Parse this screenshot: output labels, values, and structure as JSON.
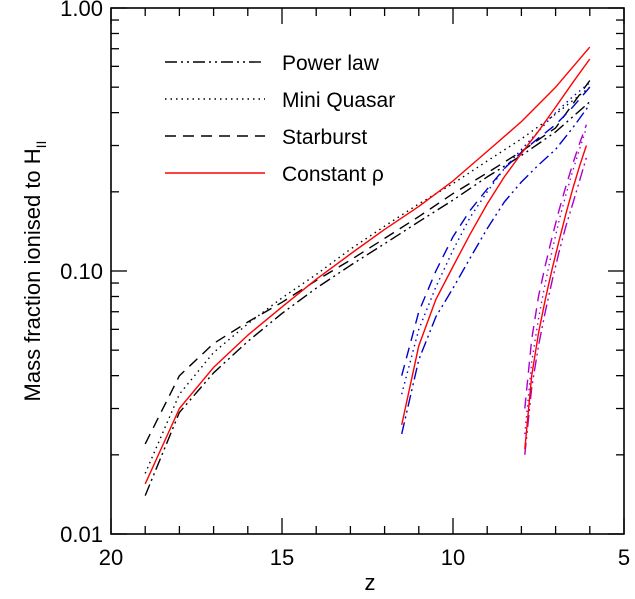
{
  "chart_data": {
    "type": "line",
    "title": "",
    "xlabel": "z",
    "ylabel_main": "Mass fraction ionised to H",
    "ylabel_sub": "II",
    "xlim": [
      20,
      5
    ],
    "ylim": [
      0.01,
      1.0
    ],
    "yscale": "log",
    "x_ticks": [
      20,
      15,
      10,
      5
    ],
    "x_tick_labels": [
      "20",
      "15",
      "10",
      "5"
    ],
    "y_ticks": [
      0.01,
      0.1,
      1.0
    ],
    "y_tick_labels": [
      "0.01",
      "0.10",
      "1.00"
    ],
    "legend_position": "top-left",
    "legend": [
      {
        "label": "Power law",
        "style": "dashdotdot",
        "color": "#000000"
      },
      {
        "label": "Mini Quasar",
        "style": "dotted",
        "color": "#000000"
      },
      {
        "label": "Starburst",
        "style": "dashed",
        "color": "#000000"
      },
      {
        "label": "Constant ρ",
        "style": "solid",
        "color": "#ff0000"
      }
    ],
    "series": [
      {
        "group": "z19",
        "style": "dashdotdot",
        "color": "#000000",
        "x": [
          19,
          18,
          17,
          16,
          15,
          14,
          13,
          12,
          11,
          10,
          9,
          8,
          7,
          6
        ],
        "y": [
          0.014,
          0.029,
          0.041,
          0.054,
          0.069,
          0.086,
          0.105,
          0.127,
          0.154,
          0.186,
          0.228,
          0.275,
          0.338,
          0.44
        ]
      },
      {
        "group": "z19",
        "style": "dotted",
        "color": "#000000",
        "x": [
          19,
          18,
          17,
          16,
          15,
          14,
          13,
          12,
          11,
          10,
          9,
          8,
          7,
          6
        ],
        "y": [
          0.017,
          0.034,
          0.049,
          0.063,
          0.079,
          0.097,
          0.121,
          0.148,
          0.18,
          0.215,
          0.262,
          0.318,
          0.395,
          0.5
        ]
      },
      {
        "group": "z19",
        "style": "dashed",
        "color": "#000000",
        "x": [
          19,
          18,
          17,
          16,
          15,
          14,
          13,
          12,
          11,
          10,
          9,
          8,
          7,
          6
        ],
        "y": [
          0.022,
          0.04,
          0.053,
          0.064,
          0.076,
          0.092,
          0.11,
          0.133,
          0.161,
          0.197,
          0.236,
          0.285,
          0.35,
          0.53
        ]
      },
      {
        "group": "z19",
        "style": "solid",
        "color": "#ff0000",
        "x": [
          19,
          18,
          17,
          16,
          15,
          14,
          13,
          12,
          11,
          10,
          9,
          8,
          7,
          6
        ],
        "y": [
          0.0155,
          0.03,
          0.043,
          0.057,
          0.073,
          0.093,
          0.116,
          0.144,
          0.176,
          0.22,
          0.285,
          0.37,
          0.5,
          0.71
        ]
      },
      {
        "group": "z11.5",
        "style": "dashdotdot",
        "color": "#0000cc",
        "x": [
          11.5,
          11,
          10.5,
          10,
          9.5,
          9,
          8.5,
          8,
          7.5,
          7,
          6.5,
          6
        ],
        "y": [
          0.024,
          0.046,
          0.067,
          0.086,
          0.112,
          0.145,
          0.183,
          0.218,
          0.253,
          0.29,
          0.35,
          0.43
        ]
      },
      {
        "group": "z11.5",
        "style": "dotted",
        "color": "#0000cc",
        "x": [
          11.5,
          11,
          10.5,
          10,
          9.5,
          9,
          8.5,
          8,
          7.5,
          7,
          6.5,
          6
        ],
        "y": [
          0.034,
          0.06,
          0.087,
          0.12,
          0.16,
          0.2,
          0.245,
          0.29,
          0.34,
          0.4,
          0.46,
          0.52
        ]
      },
      {
        "group": "z11.5",
        "style": "dashed",
        "color": "#0000cc",
        "x": [
          11.5,
          11,
          10.5,
          10,
          9.5,
          9,
          8.5,
          8,
          7.5,
          7,
          6.5,
          6
        ],
        "y": [
          0.04,
          0.07,
          0.1,
          0.135,
          0.17,
          0.205,
          0.245,
          0.283,
          0.32,
          0.36,
          0.42,
          0.5
        ]
      },
      {
        "group": "z11.5",
        "style": "solid",
        "color": "#ff0000",
        "x": [
          11.5,
          11,
          10.5,
          10,
          9.5,
          9,
          8.5,
          8,
          7.5,
          7,
          6.5,
          6
        ],
        "y": [
          0.026,
          0.052,
          0.078,
          0.104,
          0.138,
          0.18,
          0.228,
          0.28,
          0.34,
          0.42,
          0.52,
          0.64
        ]
      },
      {
        "group": "z7.9",
        "style": "dashdotdot",
        "color": "#aa00cc",
        "x": [
          7.9,
          7.7,
          7.5,
          7.3,
          7.1,
          6.9,
          6.7,
          6.5,
          6.3,
          6.1
        ],
        "y": [
          0.02,
          0.036,
          0.052,
          0.07,
          0.092,
          0.118,
          0.148,
          0.18,
          0.22,
          0.27
        ]
      },
      {
        "group": "z7.9",
        "style": "dotted",
        "color": "#aa00cc",
        "x": [
          7.9,
          7.7,
          7.5,
          7.3,
          7.1,
          6.9,
          6.7,
          6.5,
          6.3,
          6.1
        ],
        "y": [
          0.024,
          0.045,
          0.066,
          0.09,
          0.12,
          0.155,
          0.195,
          0.24,
          0.29,
          0.35
        ]
      },
      {
        "group": "z7.9",
        "style": "dashed",
        "color": "#aa00cc",
        "x": [
          7.9,
          7.7,
          7.5,
          7.3,
          7.1,
          6.9,
          6.7,
          6.5,
          6.3,
          6.1
        ],
        "y": [
          0.03,
          0.055,
          0.08,
          0.105,
          0.135,
          0.17,
          0.21,
          0.255,
          0.305,
          0.36
        ]
      },
      {
        "group": "z7.9",
        "style": "solid",
        "color": "#ff0000",
        "x": [
          7.9,
          7.7,
          7.5,
          7.3,
          7.1,
          6.9,
          6.7,
          6.5,
          6.3,
          6.1
        ],
        "y": [
          0.021,
          0.04,
          0.058,
          0.078,
          0.102,
          0.13,
          0.165,
          0.205,
          0.25,
          0.3
        ]
      }
    ]
  }
}
